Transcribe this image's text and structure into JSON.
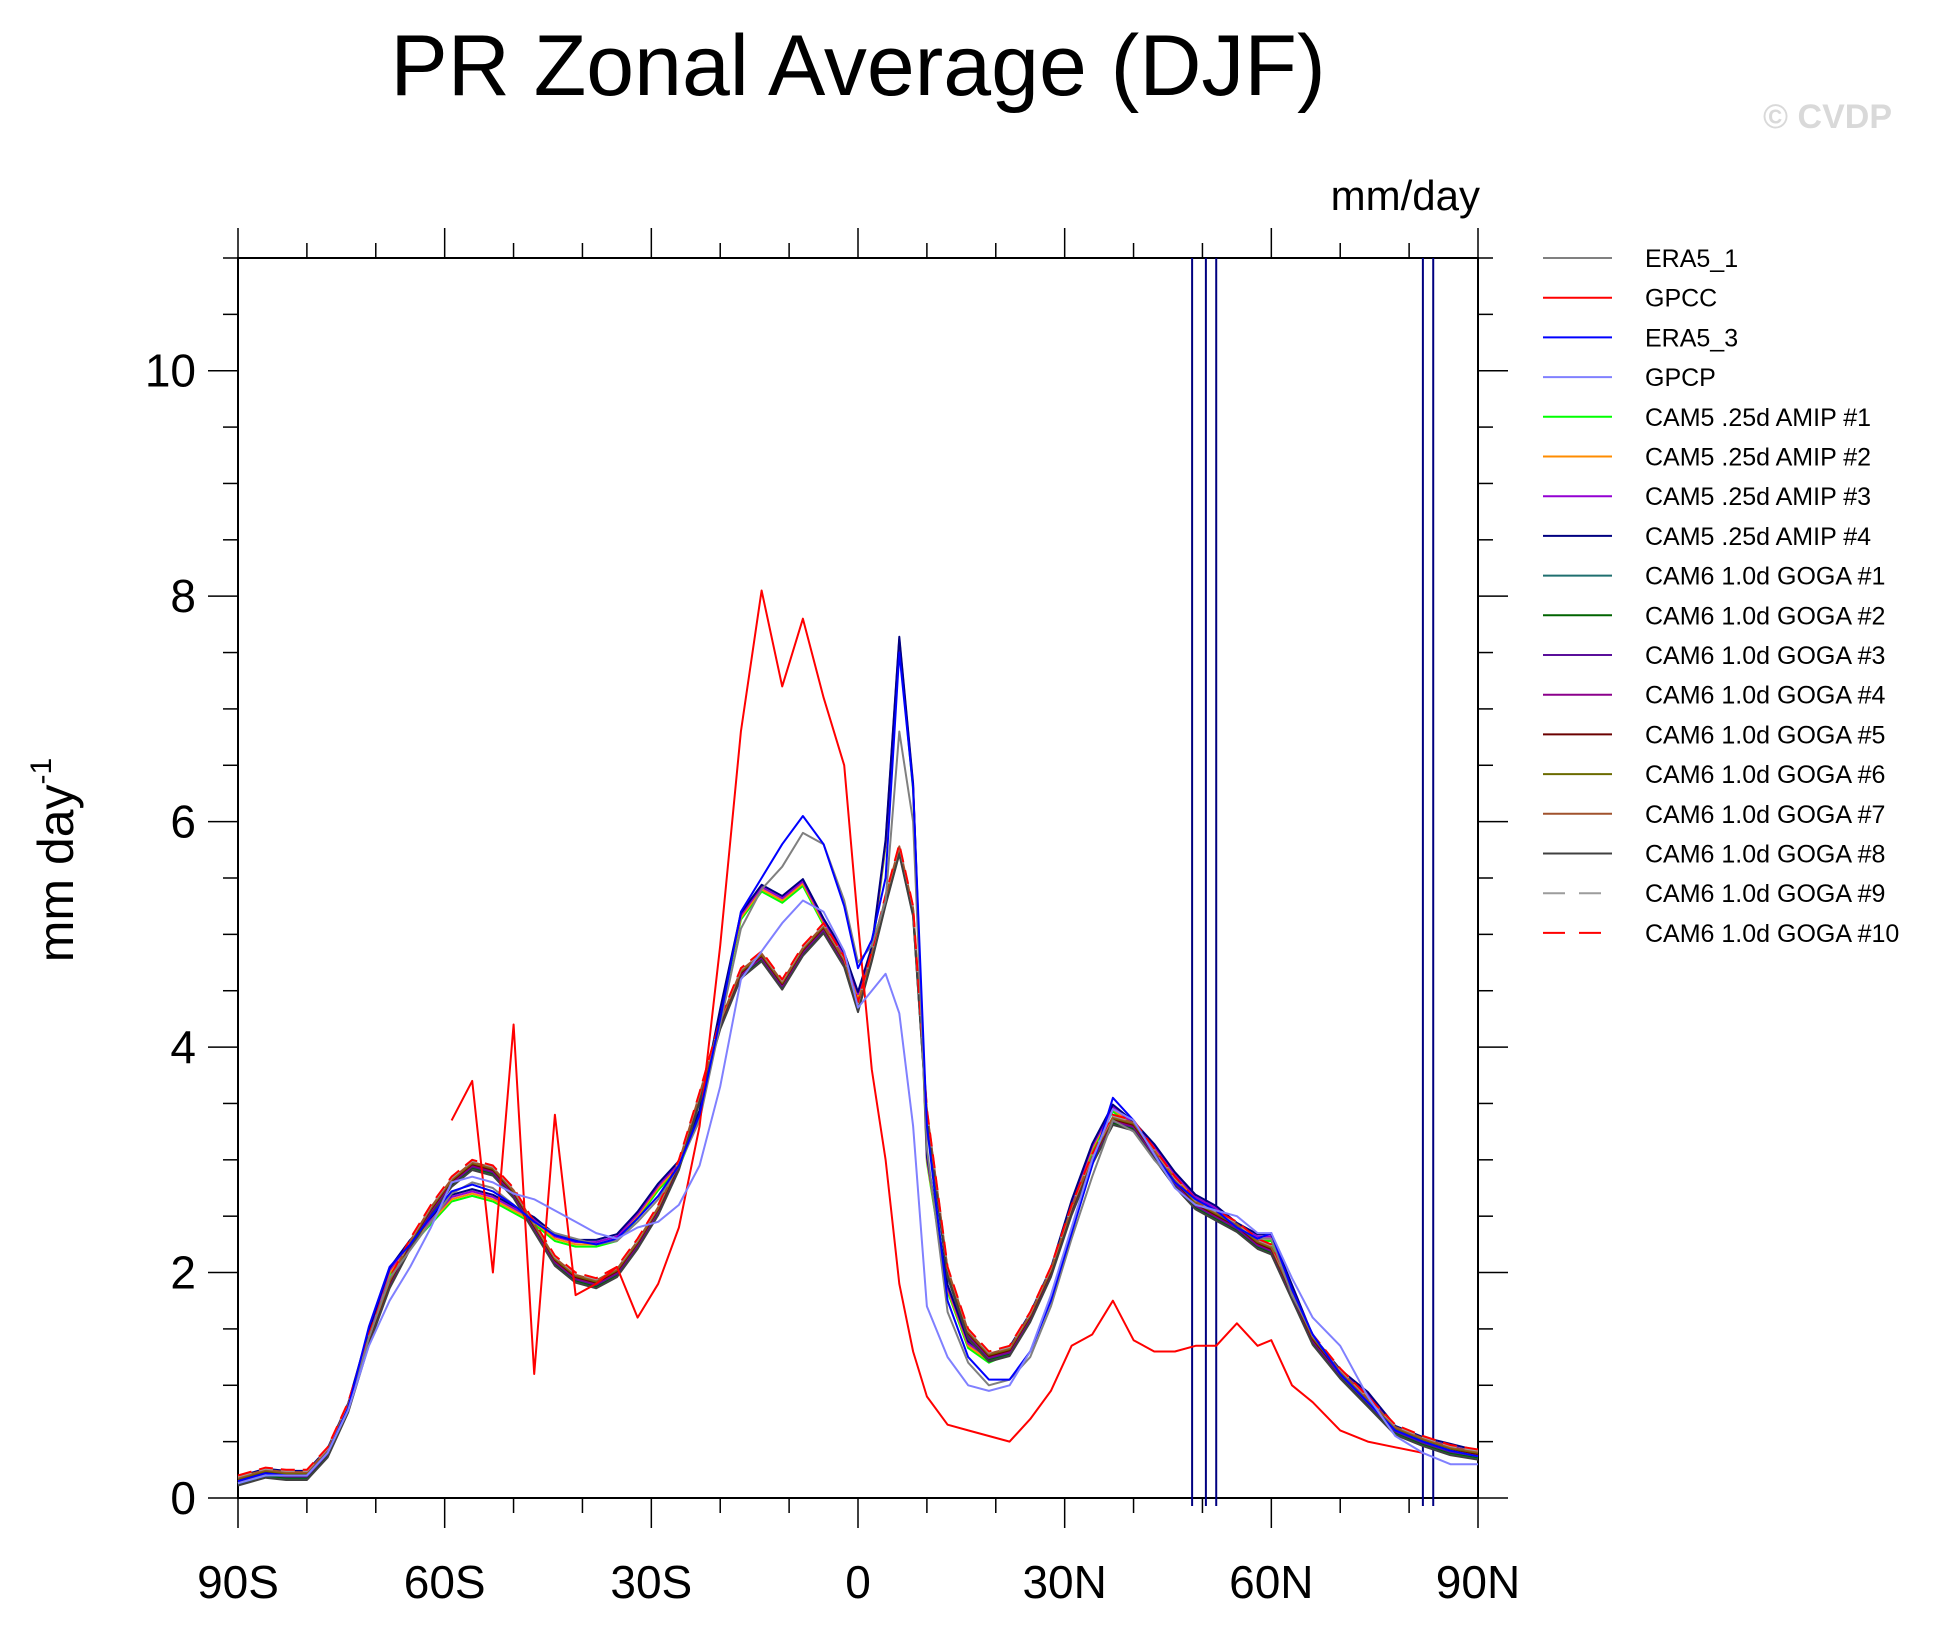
{
  "title": "PR Zonal Average (DJF)",
  "watermark": "© CVDP",
  "chart_data": {
    "type": "line",
    "title": "PR Zonal Average (DJF)",
    "units": "mm/day",
    "ylabel": "mm day",
    "ylabel_superscript": "-1",
    "xlim": [
      -90,
      90
    ],
    "ylim": [
      0,
      11
    ],
    "xticks": [
      {
        "value": -90,
        "label": "90S"
      },
      {
        "value": -60,
        "label": "60S"
      },
      {
        "value": -30,
        "label": "30S"
      },
      {
        "value": 0,
        "label": "0"
      },
      {
        "value": 30,
        "label": "30N"
      },
      {
        "value": 60,
        "label": "60N"
      },
      {
        "value": 90,
        "label": "90N"
      }
    ],
    "yticks": [
      {
        "value": 0,
        "label": "0"
      },
      {
        "value": 2,
        "label": "2"
      },
      {
        "value": 4,
        "label": "4"
      },
      {
        "value": 6,
        "label": "6"
      },
      {
        "value": 8,
        "label": "8"
      },
      {
        "value": 10,
        "label": "10"
      }
    ],
    "x": [
      -90,
      -86,
      -83,
      -80,
      -77,
      -74,
      -71,
      -68,
      -65,
      -62,
      -59,
      -56,
      -53,
      -50,
      -47,
      -44,
      -41,
      -38,
      -35,
      -32,
      -29,
      -26,
      -23,
      -20,
      -17,
      -14,
      -11,
      -8,
      -5,
      -2,
      0,
      2,
      4,
      6,
      8,
      10,
      13,
      16,
      19,
      22,
      25,
      28,
      31,
      34,
      37,
      40,
      43,
      46,
      49,
      52,
      55,
      58,
      60,
      63,
      66,
      70,
      74,
      78,
      82,
      86,
      90
    ],
    "base_obs": [
      0.15,
      0.22,
      0.2,
      0.2,
      0.4,
      0.8,
      1.5,
      2.05,
      2.25,
      2.5,
      2.75,
      2.8,
      2.75,
      2.6,
      2.45,
      2.35,
      2.3,
      2.25,
      2.3,
      2.45,
      2.65,
      2.95,
      3.4,
      4.3,
      5.15,
      5.45,
      5.75,
      5.95,
      5.75,
      5.3,
      4.7,
      4.95,
      5.4,
      6.85,
      6.1,
      3.2,
      1.8,
      1.3,
      1.1,
      1.1,
      1.3,
      1.7,
      2.3,
      2.9,
      3.4,
      3.3,
      3.0,
      2.8,
      2.65,
      2.55,
      2.4,
      2.3,
      2.3,
      1.8,
      1.45,
      1.1,
      0.85,
      0.6,
      0.5,
      0.42,
      0.37
    ],
    "base_cam5": [
      0.15,
      0.22,
      0.2,
      0.2,
      0.4,
      0.8,
      1.45,
      2.0,
      2.25,
      2.45,
      2.65,
      2.7,
      2.65,
      2.55,
      2.45,
      2.3,
      2.25,
      2.25,
      2.3,
      2.5,
      2.75,
      2.95,
      3.4,
      4.3,
      5.15,
      5.4,
      5.3,
      5.45,
      5.1,
      4.8,
      4.45,
      4.85,
      5.8,
      7.6,
      6.3,
      3.0,
      1.85,
      1.35,
      1.22,
      1.3,
      1.6,
      2.0,
      2.6,
      3.1,
      3.45,
      3.3,
      3.1,
      2.85,
      2.65,
      2.55,
      2.4,
      2.3,
      2.3,
      1.85,
      1.4,
      1.1,
      0.9,
      0.6,
      0.5,
      0.44,
      0.38
    ],
    "base_goga": [
      0.15,
      0.22,
      0.2,
      0.2,
      0.4,
      0.8,
      1.4,
      1.9,
      2.25,
      2.55,
      2.8,
      2.95,
      2.9,
      2.7,
      2.4,
      2.1,
      1.95,
      1.9,
      2.0,
      2.25,
      2.55,
      2.95,
      3.55,
      4.2,
      4.65,
      4.8,
      4.55,
      4.85,
      5.05,
      4.75,
      4.35,
      4.8,
      5.3,
      5.75,
      5.2,
      3.4,
      2.0,
      1.45,
      1.25,
      1.3,
      1.6,
      2.0,
      2.55,
      3.0,
      3.35,
      3.3,
      3.05,
      2.8,
      2.6,
      2.5,
      2.4,
      2.25,
      2.2,
      1.8,
      1.4,
      1.1,
      0.85,
      0.6,
      0.5,
      0.42,
      0.38
    ],
    "series": [
      {
        "name": "ERA5_1",
        "color": "#808080",
        "dashed": false,
        "values": [
          0.13,
          0.21,
          0.2,
          0.2,
          0.4,
          0.78,
          1.42,
          1.95,
          2.2,
          2.45,
          2.7,
          2.8,
          2.75,
          2.6,
          2.45,
          2.35,
          2.3,
          2.25,
          2.28,
          2.45,
          2.65,
          2.95,
          3.35,
          4.2,
          5.05,
          5.4,
          5.6,
          5.9,
          5.8,
          5.3,
          4.75,
          4.9,
          5.3,
          6.8,
          6.0,
          3.1,
          1.65,
          1.2,
          1.0,
          1.05,
          1.25,
          1.7,
          2.3,
          2.85,
          3.35,
          3.25,
          3.0,
          2.8,
          2.65,
          2.55,
          2.4,
          2.3,
          2.3,
          1.8,
          1.45,
          1.1,
          0.85,
          0.6,
          0.5,
          0.42,
          0.37
        ]
      },
      {
        "name": "GPCC",
        "color": "#ff0000",
        "dashed": false,
        "values": [
          null,
          null,
          null,
          null,
          null,
          null,
          null,
          null,
          null,
          null,
          3.35,
          3.7,
          2.0,
          4.2,
          1.1,
          3.4,
          1.8,
          1.9,
          2.05,
          1.6,
          1.9,
          2.4,
          3.3,
          4.9,
          6.8,
          8.05,
          7.2,
          7.8,
          7.1,
          6.5,
          5.1,
          3.8,
          3.0,
          1.9,
          1.3,
          0.9,
          0.65,
          0.6,
          0.55,
          0.5,
          0.7,
          0.95,
          1.35,
          1.45,
          1.75,
          1.4,
          1.3,
          1.3,
          1.35,
          1.35,
          1.55,
          1.35,
          1.4,
          1.0,
          0.85,
          0.6,
          0.5,
          0.45,
          0.4,
          null,
          null
        ]
      },
      {
        "name": "ERA5_3",
        "color": "#0000ff",
        "dashed": false,
        "values": [
          0.15,
          0.22,
          0.2,
          0.2,
          0.4,
          0.8,
          1.52,
          2.05,
          2.25,
          2.5,
          2.72,
          2.78,
          2.72,
          2.6,
          2.45,
          2.33,
          2.28,
          2.25,
          2.3,
          2.48,
          2.68,
          2.95,
          3.4,
          4.25,
          5.2,
          5.5,
          5.8,
          6.05,
          5.8,
          5.25,
          4.7,
          4.95,
          5.5,
          7.5,
          6.3,
          3.3,
          1.75,
          1.25,
          1.05,
          1.05,
          1.3,
          1.75,
          2.35,
          2.95,
          3.55,
          3.35,
          3.05,
          2.8,
          2.65,
          2.55,
          2.4,
          2.3,
          2.35,
          1.85,
          1.45,
          1.1,
          0.85,
          0.6,
          0.5,
          0.42,
          0.37
        ]
      },
      {
        "name": "GPCP",
        "color": "#8080ff",
        "dashed": false,
        "values": [
          0.13,
          0.2,
          0.2,
          0.2,
          0.4,
          0.78,
          1.35,
          1.75,
          2.05,
          2.4,
          2.8,
          2.85,
          2.8,
          2.7,
          2.65,
          2.55,
          2.45,
          2.35,
          2.3,
          2.4,
          2.45,
          2.6,
          2.95,
          3.65,
          4.6,
          4.85,
          5.1,
          5.3,
          5.2,
          4.85,
          4.35,
          4.5,
          4.65,
          4.3,
          3.3,
          1.7,
          1.25,
          1.0,
          0.95,
          1.0,
          1.3,
          1.8,
          2.4,
          3.0,
          3.45,
          3.35,
          3.05,
          2.75,
          2.6,
          2.55,
          2.5,
          2.35,
          2.35,
          1.95,
          1.6,
          1.35,
          0.9,
          0.55,
          0.4,
          0.3,
          0.3
        ]
      },
      {
        "name": "CAM5 .25d AMIP #1",
        "color": "#00ff00",
        "dashed": false,
        "model": "cam5",
        "offset": -0.02
      },
      {
        "name": "CAM5 .25d AMIP #2",
        "color": "#ff8c00",
        "dashed": false,
        "model": "cam5",
        "offset": 0.0
      },
      {
        "name": "CAM5 .25d AMIP #3",
        "color": "#9400d3",
        "dashed": false,
        "model": "cam5",
        "offset": 0.02
      },
      {
        "name": "CAM5 .25d AMIP #4",
        "color": "#000080",
        "dashed": false,
        "model": "cam5",
        "offset": 0.04
      },
      {
        "name": "CAM6 1.0d GOGA #1",
        "color": "#1f6f6f",
        "dashed": false,
        "model": "goga",
        "offset": -0.03
      },
      {
        "name": "CAM6 1.0d GOGA #2",
        "color": "#006400",
        "dashed": false,
        "model": "goga",
        "offset": -0.02
      },
      {
        "name": "CAM6 1.0d GOGA #3",
        "color": "#5a0f9a",
        "dashed": false,
        "model": "goga",
        "offset": -0.01
      },
      {
        "name": "CAM6 1.0d GOGA #4",
        "color": "#8b008b",
        "dashed": false,
        "model": "goga",
        "offset": 0.0
      },
      {
        "name": "CAM6 1.0d GOGA #5",
        "color": "#6b0000",
        "dashed": false,
        "model": "goga",
        "offset": 0.01
      },
      {
        "name": "CAM6 1.0d GOGA #6",
        "color": "#6b6b00",
        "dashed": false,
        "model": "goga",
        "offset": 0.02
      },
      {
        "name": "CAM6 1.0d GOGA #7",
        "color": "#a0522d",
        "dashed": false,
        "model": "goga",
        "offset": 0.03
      },
      {
        "name": "CAM6 1.0d GOGA #8",
        "color": "#404040",
        "dashed": false,
        "model": "goga",
        "offset": -0.04
      },
      {
        "name": "CAM6 1.0d GOGA #9",
        "color": "#9c9c9c",
        "dashed": true,
        "model": "goga",
        "offset": 0.04
      },
      {
        "name": "CAM6 1.0d GOGA #10",
        "color": "#ff0000",
        "dashed": true,
        "model": "goga",
        "offset": 0.05
      }
    ],
    "vertical_lines": [
      {
        "x": 48.5,
        "color": "#000080"
      },
      {
        "x": 50.5,
        "color": "#000080"
      },
      {
        "x": 52.0,
        "color": "#000080"
      },
      {
        "x": 82.0,
        "color": "#000080"
      },
      {
        "x": 83.5,
        "color": "#000080"
      }
    ],
    "legend_position": "right"
  }
}
